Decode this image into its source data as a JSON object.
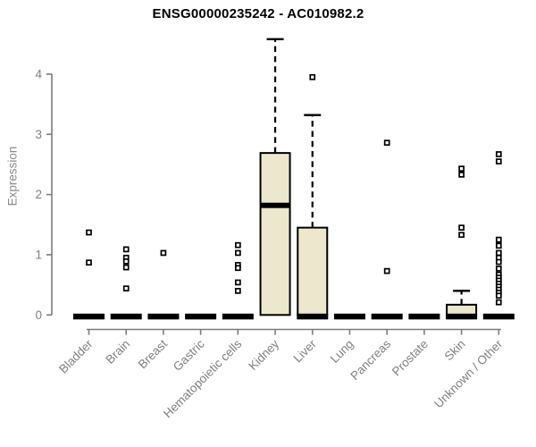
{
  "chart_data": {
    "type": "boxplot",
    "title": "ENSG00000235242 - AC010982.2",
    "ylabel": "Expression",
    "xlabel": "",
    "ylim": [
      0,
      4.6
    ],
    "y_ticks": [
      0,
      1,
      2,
      3,
      4
    ],
    "grid": false,
    "legend": null,
    "colors": {
      "box_fill": "#EDE7CE",
      "box_border": "#000000",
      "median": "#000000",
      "axis": "#7b7b7b",
      "tick_text": "#7f7f7f",
      "title_text": "#000000",
      "outlier_stroke": "#000000",
      "outlier_fill": "#ffffff"
    },
    "categories": [
      "Bladder",
      "Brain",
      "Breast",
      "Gastric",
      "Hematopoietic cells",
      "Kidney",
      "Liver",
      "Lung",
      "Pancreas",
      "Prostate",
      "Skin",
      "Unknown / Other"
    ],
    "series": [
      {
        "category": "Bladder",
        "slug": "bladder",
        "q1": 0,
        "median": 0,
        "q3": 0,
        "whisker_low": 0,
        "whisker_high": 0,
        "outliers": [
          1.37,
          0.87
        ]
      },
      {
        "category": "Brain",
        "slug": "brain",
        "q1": 0,
        "median": 0,
        "q3": 0,
        "whisker_low": 0,
        "whisker_high": 0,
        "outliers": [
          1.09,
          0.95,
          0.89,
          0.79,
          0.44
        ]
      },
      {
        "category": "Breast",
        "slug": "breast",
        "q1": 0,
        "median": 0,
        "q3": 0,
        "whisker_low": 0,
        "whisker_high": 0,
        "outliers": [
          1.03
        ]
      },
      {
        "category": "Gastric",
        "slug": "gastric",
        "q1": 0,
        "median": 0,
        "q3": 0,
        "whisker_low": 0,
        "whisker_high": 0,
        "outliers": []
      },
      {
        "category": "Hematopoietic cells",
        "slug": "hematopoietic-cells",
        "q1": 0,
        "median": 0,
        "q3": 0,
        "whisker_low": 0,
        "whisker_high": 0,
        "outliers": [
          1.16,
          1.03,
          0.83,
          0.78,
          0.54,
          0.4
        ]
      },
      {
        "category": "Kidney",
        "slug": "kidney",
        "q1": 0,
        "median": 1.82,
        "q3": 2.69,
        "whisker_low": 0,
        "whisker_high": 4.58,
        "outliers": []
      },
      {
        "category": "Liver",
        "slug": "liver",
        "q1": 0,
        "median": 0,
        "q3": 1.45,
        "whisker_low": 0,
        "whisker_high": 3.32,
        "outliers": [
          3.95
        ]
      },
      {
        "category": "Lung",
        "slug": "lung",
        "q1": 0,
        "median": 0,
        "q3": 0,
        "whisker_low": 0,
        "whisker_high": 0,
        "outliers": []
      },
      {
        "category": "Pancreas",
        "slug": "pancreas",
        "q1": 0,
        "median": 0,
        "q3": 0,
        "whisker_low": 0,
        "whisker_high": 0,
        "outliers": [
          2.86,
          0.73
        ]
      },
      {
        "category": "Prostate",
        "slug": "prostate",
        "q1": 0,
        "median": 0,
        "q3": 0,
        "whisker_low": 0,
        "whisker_high": 0,
        "outliers": []
      },
      {
        "category": "Skin",
        "slug": "skin",
        "q1": 0,
        "median": 0,
        "q3": 0.17,
        "whisker_low": 0,
        "whisker_high": 0.4,
        "outliers": [
          2.43,
          2.33,
          1.45,
          1.33
        ]
      },
      {
        "category": "Unknown / Other",
        "slug": "unknown-other",
        "q1": 0,
        "median": 0,
        "q3": 0,
        "whisker_low": 0,
        "whisker_high": 0,
        "outliers": [
          2.67,
          2.55,
          1.25,
          1.15,
          1.03,
          0.95,
          0.88,
          0.77,
          0.67,
          0.62,
          0.57,
          0.52,
          0.47,
          0.42,
          0.37,
          0.32,
          0.21
        ]
      }
    ]
  }
}
